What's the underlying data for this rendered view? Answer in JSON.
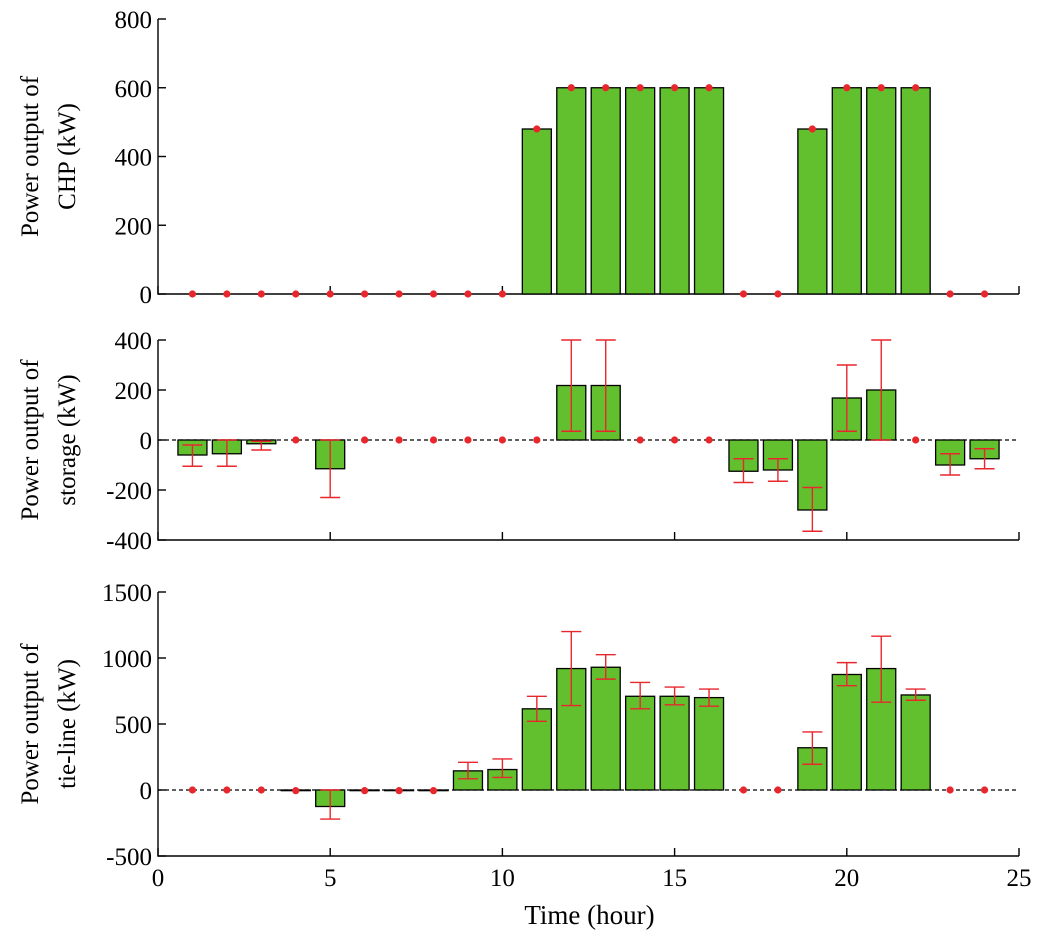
{
  "chart_data": [
    {
      "type": "bar",
      "ylabel_lines": [
        "Power output of",
        "CHP (kW)"
      ],
      "x": [
        1,
        2,
        3,
        4,
        5,
        6,
        7,
        8,
        9,
        10,
        11,
        12,
        13,
        14,
        15,
        16,
        17,
        18,
        19,
        20,
        21,
        22,
        23,
        24
      ],
      "values": [
        0,
        0,
        0,
        0,
        0,
        0,
        0,
        0,
        0,
        0,
        480,
        600,
        600,
        600,
        600,
        600,
        0,
        0,
        480,
        600,
        600,
        600,
        0,
        0
      ],
      "ylim": [
        0,
        800
      ],
      "yticks": [
        0,
        200,
        400,
        600,
        800
      ],
      "ytick_labels": [
        "0",
        "200",
        "400",
        "600",
        "800"
      ],
      "xlim": [
        0,
        25
      ],
      "xticks": [
        0,
        5,
        10,
        15,
        20,
        25
      ],
      "show_x_tick_labels": false,
      "marker": "dot",
      "dashed_zero_line": false
    },
    {
      "type": "bar",
      "ylabel_lines": [
        "Power output of",
        "storage (kW)"
      ],
      "x": [
        1,
        2,
        3,
        4,
        5,
        6,
        7,
        8,
        9,
        10,
        11,
        12,
        13,
        14,
        15,
        16,
        17,
        18,
        19,
        20,
        21,
        22,
        23,
        24
      ],
      "values": [
        -60,
        -55,
        -15,
        0,
        -115,
        0,
        0,
        0,
        0,
        0,
        0,
        218,
        218,
        0,
        0,
        0,
        -125,
        -120,
        -280,
        168,
        200,
        0,
        -100,
        -75
      ],
      "error_low": [
        -105,
        -105,
        -40,
        null,
        -230,
        null,
        null,
        null,
        null,
        null,
        null,
        35,
        35,
        null,
        null,
        null,
        -170,
        -165,
        -365,
        35,
        0,
        null,
        -140,
        -115
      ],
      "error_high": [
        -20,
        0,
        -5,
        null,
        0,
        null,
        null,
        null,
        null,
        null,
        null,
        400,
        400,
        null,
        null,
        null,
        -75,
        -75,
        -190,
        300,
        400,
        null,
        -55,
        -35
      ],
      "ylim": [
        -400,
        400
      ],
      "yticks": [
        -400,
        -200,
        0,
        200,
        400
      ],
      "ytick_labels": [
        "-400",
        "-200",
        "0",
        "200",
        "400"
      ],
      "xlim": [
        0,
        25
      ],
      "xticks": [
        0,
        5,
        10,
        15,
        20,
        25
      ],
      "show_x_tick_labels": false,
      "marker": "dot",
      "dashed_zero_line": true
    },
    {
      "type": "bar",
      "ylabel_lines": [
        "Power output of",
        "tie-line (kW)"
      ],
      "x": [
        1,
        2,
        3,
        4,
        5,
        6,
        7,
        8,
        9,
        10,
        11,
        12,
        13,
        14,
        15,
        16,
        17,
        18,
        19,
        20,
        21,
        22,
        23,
        24
      ],
      "values": [
        0,
        0,
        0,
        -5,
        -125,
        -5,
        -5,
        -5,
        145,
        155,
        615,
        920,
        930,
        710,
        710,
        700,
        0,
        0,
        320,
        875,
        920,
        720,
        0,
        0
      ],
      "error_low": [
        null,
        null,
        null,
        null,
        -220,
        null,
        null,
        null,
        85,
        95,
        520,
        640,
        840,
        615,
        645,
        635,
        null,
        null,
        195,
        790,
        665,
        680,
        null,
        null
      ],
      "error_high": [
        null,
        null,
        null,
        null,
        0,
        null,
        null,
        null,
        210,
        235,
        710,
        1200,
        1025,
        815,
        780,
        765,
        null,
        null,
        440,
        965,
        1165,
        765,
        null,
        null
      ],
      "ylim": [
        -500,
        1500
      ],
      "yticks": [
        -500,
        0,
        500,
        1000,
        1500
      ],
      "ytick_labels": [
        "-500",
        "0",
        "500",
        "1000",
        "1500"
      ],
      "xlim": [
        0,
        25
      ],
      "xticks": [
        0,
        5,
        10,
        15,
        20,
        25
      ],
      "xtick_labels": [
        "0",
        "5",
        "10",
        "15",
        "20",
        "25"
      ],
      "show_x_tick_labels": true,
      "xlabel": "Time (hour)",
      "marker": "dot",
      "dashed_zero_line": true
    }
  ],
  "colors": {
    "bar_fill": "#62c02e",
    "bar_edge": "#000000",
    "error_bar": "#e8272d",
    "marker": "#e8272d"
  }
}
